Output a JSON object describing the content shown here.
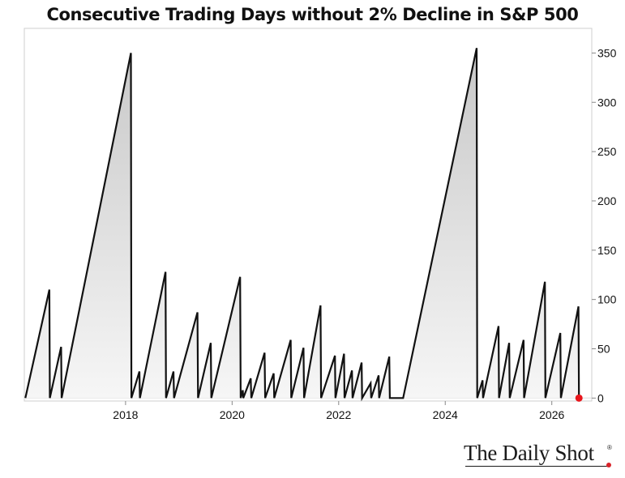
{
  "chart_data": {
    "type": "area",
    "title": "Consecutive Trading Days without 2% Decline in S&P 500",
    "xlabel": "",
    "ylabel": "",
    "xlim": [
      2016.1,
      2026.75
    ],
    "ylim": [
      -3,
      375
    ],
    "y_ticks": [
      0,
      50,
      100,
      150,
      200,
      250,
      300,
      350
    ],
    "x_ticks": [
      2018,
      2020,
      2022,
      2024,
      2026
    ],
    "y_axis_position": "right",
    "grid": false,
    "legend": "none",
    "colors": {
      "line": "#111111",
      "fill_top": "#c8c8c8",
      "fill_bottom": "#f6f6f6",
      "highlight": "#e8161c"
    },
    "series": [
      {
        "x": [
          2016.12,
          2016.57,
          2016.58,
          2016.79,
          2016.8,
          2018.1,
          2018.11,
          2018.26,
          2018.27,
          2018.75,
          2018.76,
          2018.9,
          2018.91,
          2019.35,
          2019.36,
          2019.6,
          2019.61,
          2020.15,
          2020.16,
          2020.2,
          2020.21,
          2020.35,
          2020.36,
          2020.61,
          2020.62,
          2020.78,
          2020.79,
          2021.1,
          2021.11,
          2021.34,
          2021.35,
          2021.66,
          2021.67,
          2021.93,
          2021.94,
          2022.1,
          2022.11,
          2022.25,
          2022.26,
          2022.43,
          2022.44,
          2022.6,
          2022.61,
          2022.75,
          2022.76,
          2022.95,
          2022.96,
          2023.2,
          2023.21,
          2024.59,
          2024.6,
          2024.7,
          2024.71,
          2025.0,
          2025.01,
          2025.2,
          2025.21,
          2025.47,
          2025.48,
          2025.87,
          2025.88,
          2026.16,
          2026.17,
          2026.5,
          2026.51
        ],
        "values": [
          0,
          110,
          0,
          52,
          0,
          350,
          0,
          27,
          0,
          128,
          0,
          27,
          0,
          87,
          0,
          56,
          0,
          123,
          0,
          8,
          0,
          20,
          0,
          46,
          0,
          25,
          0,
          59,
          0,
          51,
          0,
          94,
          0,
          43,
          0,
          45,
          0,
          28,
          0,
          36,
          0,
          15,
          0,
          23,
          0,
          42,
          0,
          0,
          0,
          355,
          0,
          18,
          0,
          73,
          0,
          56,
          0,
          59,
          0,
          118,
          0,
          66,
          0,
          93,
          0
        ]
      }
    ],
    "highlight_point": {
      "x": 2026.51,
      "value": 0
    }
  },
  "brand": {
    "name": "The Daily Shot",
    "reg": "®"
  }
}
